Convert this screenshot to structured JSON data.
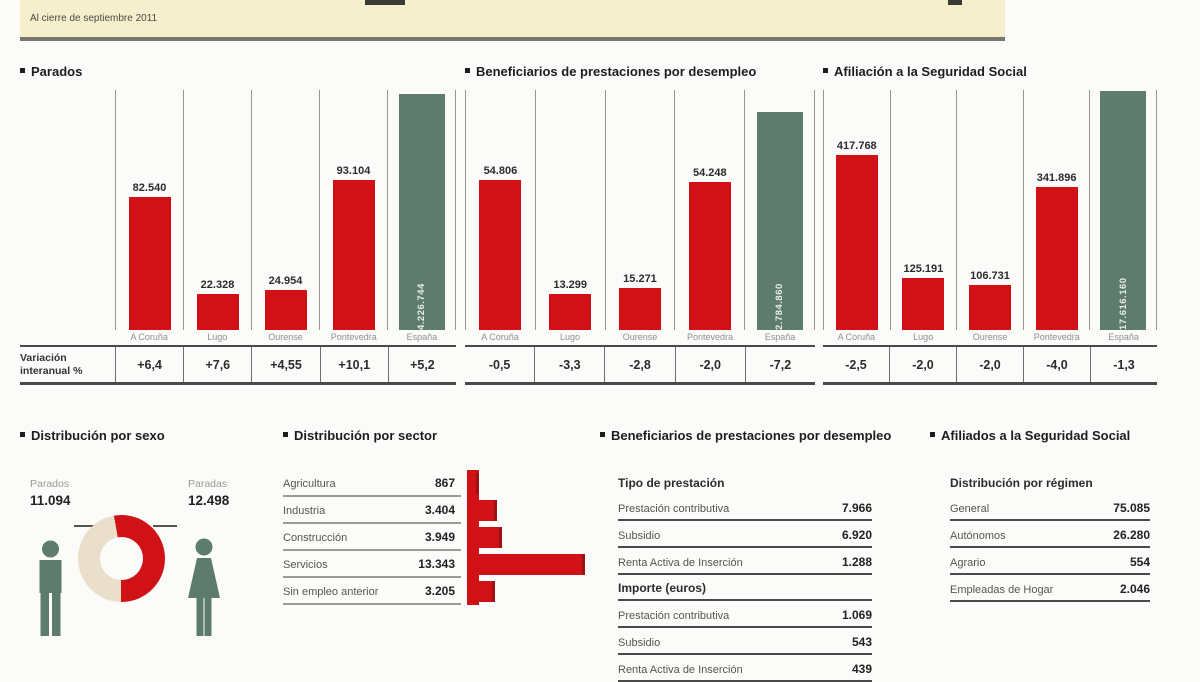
{
  "header": {
    "subtitle": "Al cierre de septiembre 2011"
  },
  "colors": {
    "red": "#d01217",
    "green": "#5e7c6e",
    "beige": "#e9dfca",
    "band": "#f6efcd"
  },
  "chart_data": [
    {
      "type": "bar",
      "title": "Parados",
      "categories": [
        "A Coruña",
        "Lugo",
        "Ourense",
        "Pontevedra",
        "España"
      ],
      "values": [
        82540,
        22328,
        24954,
        93104,
        4226744
      ],
      "value_labels": [
        "82.540",
        "22.328",
        "24.954",
        "93.104",
        "4.226.744"
      ],
      "variation_row_label": "Variación interanual %",
      "variations": [
        "+6,4",
        "+7,6",
        "+4,55",
        "+10,1",
        "+5,2"
      ],
      "highlight_last": true,
      "legend_position": "none",
      "grid": false
    },
    {
      "type": "bar",
      "title": "Beneficiarios de prestaciones por desempleo",
      "categories": [
        "A Coruña",
        "Lugo",
        "Ourense",
        "Pontevedra",
        "España"
      ],
      "values": [
        54806,
        13299,
        15271,
        54248,
        2784860
      ],
      "value_labels": [
        "54.806",
        "13.299",
        "15.271",
        "54.248",
        "2.784.860"
      ],
      "variations": [
        "-0,5",
        "-3,3",
        "-2,8",
        "-2,0",
        "-7,2"
      ],
      "highlight_last": true,
      "legend_position": "none",
      "grid": false
    },
    {
      "type": "bar",
      "title": "Afiliación a la Seguridad Social",
      "categories": [
        "A Coruña",
        "Lugo",
        "Ourense",
        "Pontevedra",
        "España"
      ],
      "values": [
        417768,
        125191,
        106731,
        341896,
        17616160
      ],
      "value_labels": [
        "417.768",
        "125.191",
        "106.731",
        "341.896",
        "17.616.160"
      ],
      "variations": [
        "-2,5",
        "-2,0",
        "-2,0",
        "-4,0",
        "-1,3"
      ],
      "highlight_last": true,
      "legend_position": "none",
      "grid": false
    },
    {
      "type": "pie",
      "title": "Distribución por sexo",
      "labels": [
        "Parados",
        "Paradas"
      ],
      "values": [
        11094,
        12498
      ],
      "value_labels": [
        "11.094",
        "12.498"
      ],
      "slice_colors": [
        "#e9dfca",
        "#d01217"
      ]
    },
    {
      "type": "bar",
      "orientation": "horizontal",
      "title": "Distribución por sector",
      "categories": [
        "Agricultura",
        "Industria",
        "Construcción",
        "Servicios",
        "Sin empleo anterior"
      ],
      "values": [
        867,
        3404,
        3949,
        13343,
        3205
      ],
      "value_labels": [
        "867",
        "3.404",
        "3.949",
        "13.343",
        "3.205"
      ]
    },
    {
      "type": "table",
      "title": "Beneficiarios de prestaciones por desempleo",
      "sections": [
        {
          "header": "Tipo de prestación",
          "header_underline": false,
          "rows": [
            [
              "Prestación contributiva",
              "7.966"
            ],
            [
              "Subsidio",
              "6.920"
            ],
            [
              "Renta Activa de Inserción",
              "1.288"
            ]
          ]
        },
        {
          "header": "Importe (euros)",
          "header_underline": true,
          "rows": [
            [
              "Prestación contributiva",
              "1.069"
            ],
            [
              "Subsidio",
              "543"
            ],
            [
              "Renta Activa de Inserción",
              "439"
            ]
          ]
        }
      ]
    },
    {
      "type": "table",
      "title": "Afiliados a la Seguridad Social",
      "sections": [
        {
          "header": "Distribución por régimen",
          "header_underline": false,
          "rows": [
            [
              "General",
              "75.085"
            ],
            [
              "Autónomos",
              "26.280"
            ],
            [
              "Agrario",
              "554"
            ],
            [
              "Empleadas de Hogar",
              "2.046"
            ]
          ]
        }
      ]
    }
  ]
}
